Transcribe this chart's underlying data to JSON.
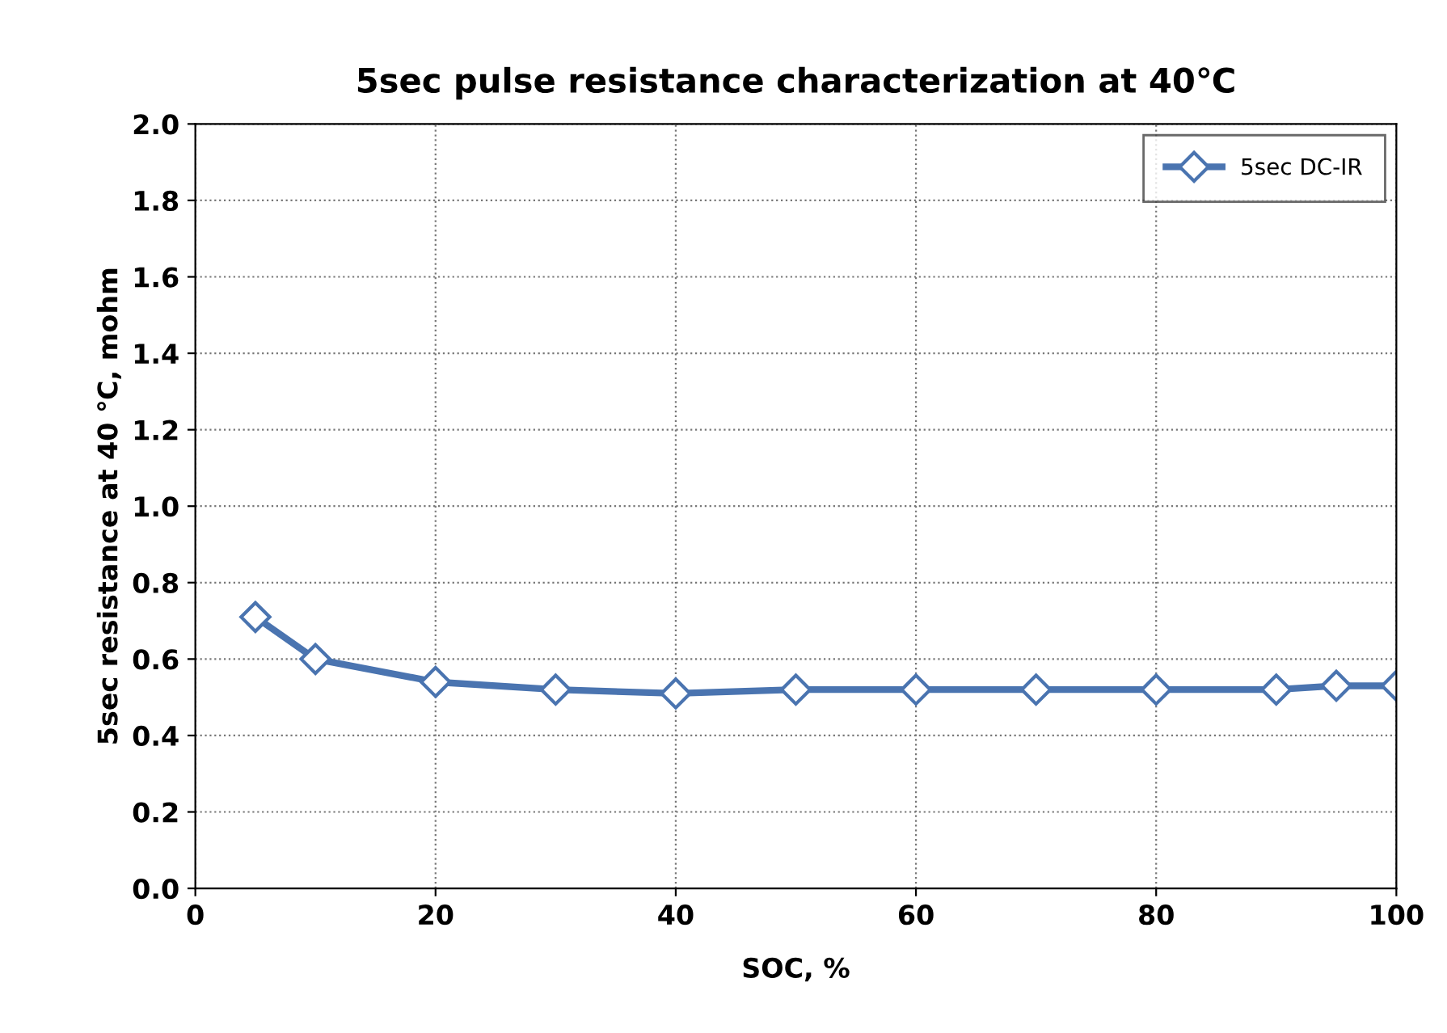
{
  "chart_data": {
    "type": "line",
    "title": "5sec pulse resistance characterization at 40℃",
    "xlabel": "SOC, %",
    "ylabel": "5sec resistance at 40 ℃, mohm",
    "x": [
      5,
      10,
      20,
      30,
      40,
      50,
      60,
      70,
      80,
      90,
      95,
      100
    ],
    "series": [
      {
        "name": "5sec DC-IR",
        "color": "#4a74b0",
        "values": [
          0.71,
          0.6,
          0.54,
          0.52,
          0.51,
          0.52,
          0.52,
          0.52,
          0.52,
          0.52,
          0.53,
          0.53
        ]
      }
    ],
    "xlim": [
      0,
      100
    ],
    "xticks": [
      0,
      20,
      40,
      60,
      80,
      100
    ],
    "ylim": [
      0,
      2.0
    ],
    "yticks": [
      {
        "value": 0,
        "label": "0.0"
      },
      {
        "value": 0.2,
        "label": "0.2"
      },
      {
        "value": 0.4,
        "label": "0.4"
      },
      {
        "value": 0.6,
        "label": "0.6"
      },
      {
        "value": 0.8,
        "label": "0.8"
      },
      {
        "value": 1.0,
        "label": "1.0"
      },
      {
        "value": 1.2,
        "label": "1.2"
      },
      {
        "value": 1.4,
        "label": "1.4"
      },
      {
        "value": 1.6,
        "label": "1.6"
      },
      {
        "value": 1.8,
        "label": "1.8"
      },
      {
        "value": 2.0,
        "label": "2.0"
      }
    ],
    "grid": true,
    "legend": "top right",
    "marker": "diamond",
    "line_style": "solid"
  }
}
